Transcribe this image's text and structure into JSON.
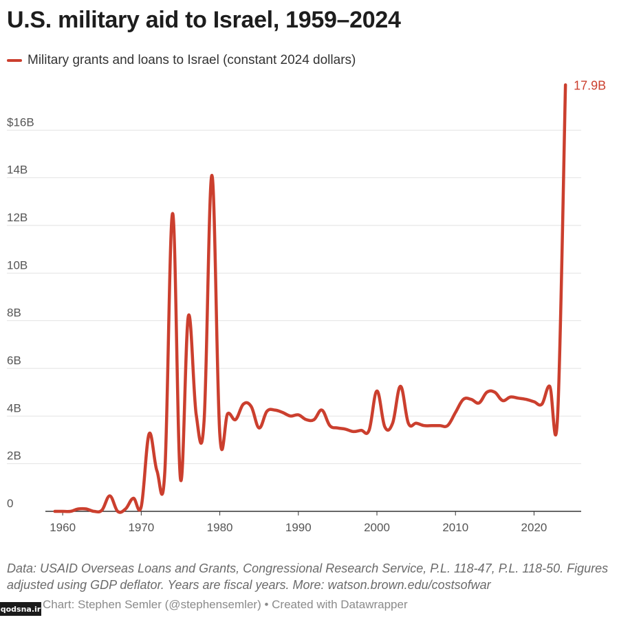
{
  "chart_data": {
    "type": "line",
    "title": "U.S. military aid to Israel, 1959–2024",
    "series": [
      {
        "name": "Military grants and loans to Israel (constant 2024 dollars)",
        "color": "#cb3f2e",
        "x": [
          1959,
          1960,
          1961,
          1962,
          1963,
          1964,
          1965,
          1966,
          1967,
          1968,
          1969,
          1970,
          1971,
          1972,
          1973,
          1974,
          1975,
          1976,
          1977,
          1978,
          1979,
          1980,
          1981,
          1982,
          1983,
          1984,
          1985,
          1986,
          1987,
          1988,
          1989,
          1990,
          1991,
          1992,
          1993,
          1994,
          1995,
          1996,
          1997,
          1998,
          1999,
          2000,
          2001,
          2002,
          2003,
          2004,
          2005,
          2006,
          2007,
          2008,
          2009,
          2010,
          2011,
          2012,
          2013,
          2014,
          2015,
          2016,
          2017,
          2018,
          2019,
          2020,
          2021,
          2022,
          2023,
          2024
        ],
        "values": [
          0,
          0,
          0,
          0.1,
          0.1,
          0,
          0.05,
          0.65,
          0,
          0.1,
          0.55,
          0.2,
          3.25,
          1.7,
          1.65,
          12.5,
          1.35,
          8.2,
          4.05,
          3.8,
          14.1,
          3.25,
          4.1,
          3.85,
          4.5,
          4.4,
          3.5,
          4.2,
          4.25,
          4.15,
          4.0,
          4.05,
          3.85,
          3.85,
          4.25,
          3.6,
          3.5,
          3.45,
          3.35,
          3.4,
          3.4,
          5.05,
          3.55,
          3.7,
          5.25,
          3.7,
          3.7,
          3.6,
          3.6,
          3.6,
          3.6,
          4.15,
          4.7,
          4.7,
          4.55,
          5.0,
          5.0,
          4.65,
          4.8,
          4.75,
          4.7,
          4.6,
          4.5,
          5.25,
          4.0,
          17.9
        ]
      }
    ],
    "last_point_label": "17.9B",
    "xlabel": "",
    "ylabel": "",
    "xlim": [
      1959,
      2024
    ],
    "ylim": [
      0,
      18
    ],
    "x_ticks": [
      {
        "value": 1960,
        "label": "1960"
      },
      {
        "value": 1970,
        "label": "1970"
      },
      {
        "value": 1980,
        "label": "1980"
      },
      {
        "value": 1990,
        "label": "1990"
      },
      {
        "value": 2000,
        "label": "2000"
      },
      {
        "value": 2010,
        "label": "2010"
      },
      {
        "value": 2020,
        "label": "2020"
      }
    ],
    "y_ticks": [
      {
        "value": 0,
        "label": "0"
      },
      {
        "value": 2,
        "label": "2B"
      },
      {
        "value": 4,
        "label": "4B"
      },
      {
        "value": 6,
        "label": "6B"
      },
      {
        "value": 8,
        "label": "8B"
      },
      {
        "value": 10,
        "label": "10B"
      },
      {
        "value": 12,
        "label": "12B"
      },
      {
        "value": 14,
        "label": "14B"
      },
      {
        "value": 16,
        "label": "$16B"
      }
    ],
    "grid": true,
    "legend": "top-left"
  },
  "footer": {
    "source_note": "Data: USAID Overseas Loans and Grants, Congressional Research Service, P.L. 118-47, P.L. 118-50. Figures adjusted using GDP deflator. Years are fiscal years. More: watson.brown.edu/costsofwar",
    "credit": "Chart: Stephen Semler (@stephensemler) • Created with Datawrapper",
    "watermark": "qodsna.ir"
  },
  "colors": {
    "line": "#cb3f2e",
    "grid": "#e2e2e2",
    "axis": "#333333"
  }
}
